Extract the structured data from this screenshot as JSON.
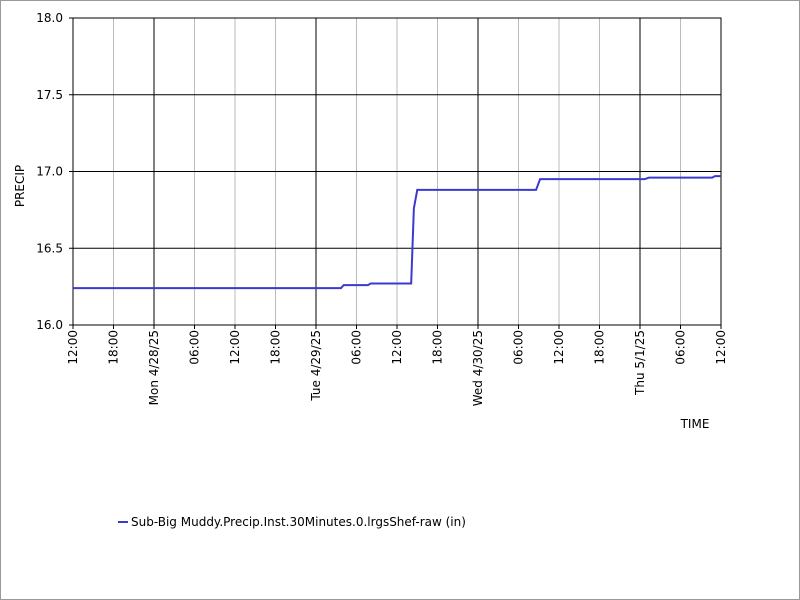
{
  "chart_data": {
    "type": "line",
    "x_label": "TIME",
    "y_label": "PRECIP",
    "x": [
      0,
      39.7,
      40.1,
      43.7,
      44.1,
      50.1,
      50.5,
      51,
      68.6,
      69.2,
      84.7,
      85.3,
      94.7,
      95.1,
      96
    ],
    "series": [
      {
        "name": "Sub-Big Muddy.Precip.Inst.30Minutes.0.lrgsShef-raw (in)",
        "color": "#3a3ad0",
        "values": [
          16.24,
          16.24,
          16.26,
          16.26,
          16.27,
          16.27,
          16.76,
          16.88,
          16.88,
          16.95,
          16.95,
          16.96,
          16.96,
          16.97,
          16.97
        ]
      }
    ],
    "xlim": [
      0,
      96
    ],
    "xticks": [
      {
        "value": 0,
        "label": "12:00"
      },
      {
        "value": 6,
        "label": "18:00"
      },
      {
        "value": 12,
        "label": "Mon 4/28/25"
      },
      {
        "value": 18,
        "label": "06:00"
      },
      {
        "value": 24,
        "label": "12:00"
      },
      {
        "value": 30,
        "label": "18:00"
      },
      {
        "value": 36,
        "label": "Tue 4/29/25"
      },
      {
        "value": 42,
        "label": "06:00"
      },
      {
        "value": 48,
        "label": "12:00"
      },
      {
        "value": 54,
        "label": "18:00"
      },
      {
        "value": 60,
        "label": "Wed 4/30/25"
      },
      {
        "value": 66,
        "label": "06:00"
      },
      {
        "value": 72,
        "label": "12:00"
      },
      {
        "value": 78,
        "label": "18:00"
      },
      {
        "value": 84,
        "label": "Thu 5/1/25"
      },
      {
        "value": 90,
        "label": "06:00"
      },
      {
        "value": 96,
        "label": "12:00"
      }
    ],
    "ylim": [
      16,
      18
    ],
    "yticks": [
      {
        "value": 16,
        "label": "16.0"
      },
      16.5,
      {
        "value": 17,
        "label": "17.0"
      },
      17.5,
      {
        "value": 18,
        "label": "18.0"
      }
    ],
    "grid": true
  }
}
